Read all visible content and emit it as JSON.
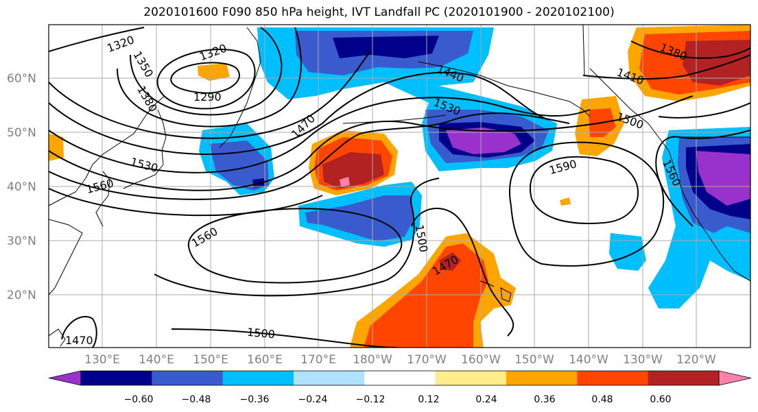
{
  "title": "2020101600 F090 850 hPa height, IVT Landfall PC (2020101900 - 2020102100)",
  "lat_labels": [
    "60°N",
    "50°N",
    "40°N",
    "30°N",
    "20°N"
  ],
  "lon_labels": [
    "130°E",
    "140°E",
    "150°E",
    "160°E",
    "170°E",
    "180°W",
    "170°W",
    "160°W",
    "150°W",
    "140°W",
    "130°W",
    "120°W"
  ],
  "contour_labels": [
    "1320",
    "1350",
    "1320",
    "1290",
    "1380",
    "1440",
    "1470",
    "1530",
    "1530",
    "1380",
    "1410",
    "1500",
    "1560",
    "1590",
    "1560",
    "1560",
    "1500",
    "1470",
    "1500",
    "1470"
  ],
  "colorbar": {
    "ticks": [
      "−0.60",
      "−0.48",
      "−0.36",
      "−0.24",
      "−0.12",
      "0.12",
      "0.24",
      "0.36",
      "0.48",
      "0.60"
    ],
    "colors": [
      "#9932cc",
      "#00008b",
      "#3a5bcd",
      "#00bfff",
      "#b0e2ff",
      "#ffffff",
      "#ffec8b",
      "#ffa500",
      "#ff4500",
      "#b22222",
      "#ff82ab"
    ]
  }
}
